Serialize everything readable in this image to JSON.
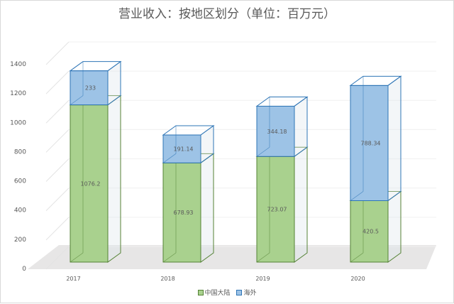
{
  "chart_data": {
    "type": "bar",
    "stacked": true,
    "title": "营业收入：按地区划分（单位：百万元）",
    "categories": [
      "2017",
      "2018",
      "2019",
      "2020"
    ],
    "series": [
      {
        "name": "中国大陆",
        "values": [
          1076.2,
          678.93,
          723.07,
          420.5
        ],
        "color": "#a9d18e",
        "edge": "#548235"
      },
      {
        "name": "海外",
        "values": [
          233,
          191.14,
          344.18,
          788.34
        ],
        "color": "#9dc3e6",
        "edge": "#2e75b6"
      }
    ],
    "data_labels": [
      [
        "1076.2",
        "678.93",
        "723.07",
        "420.5"
      ],
      [
        "233",
        "191.14",
        "344.18",
        "788.34"
      ]
    ],
    "y_ticks": [
      "0",
      "200",
      "400",
      "600",
      "800",
      "1000",
      "1200",
      "1400"
    ],
    "ylim": [
      0,
      1400
    ],
    "xlabel": "",
    "ylabel": "",
    "legend": "bottom",
    "grid": true
  }
}
